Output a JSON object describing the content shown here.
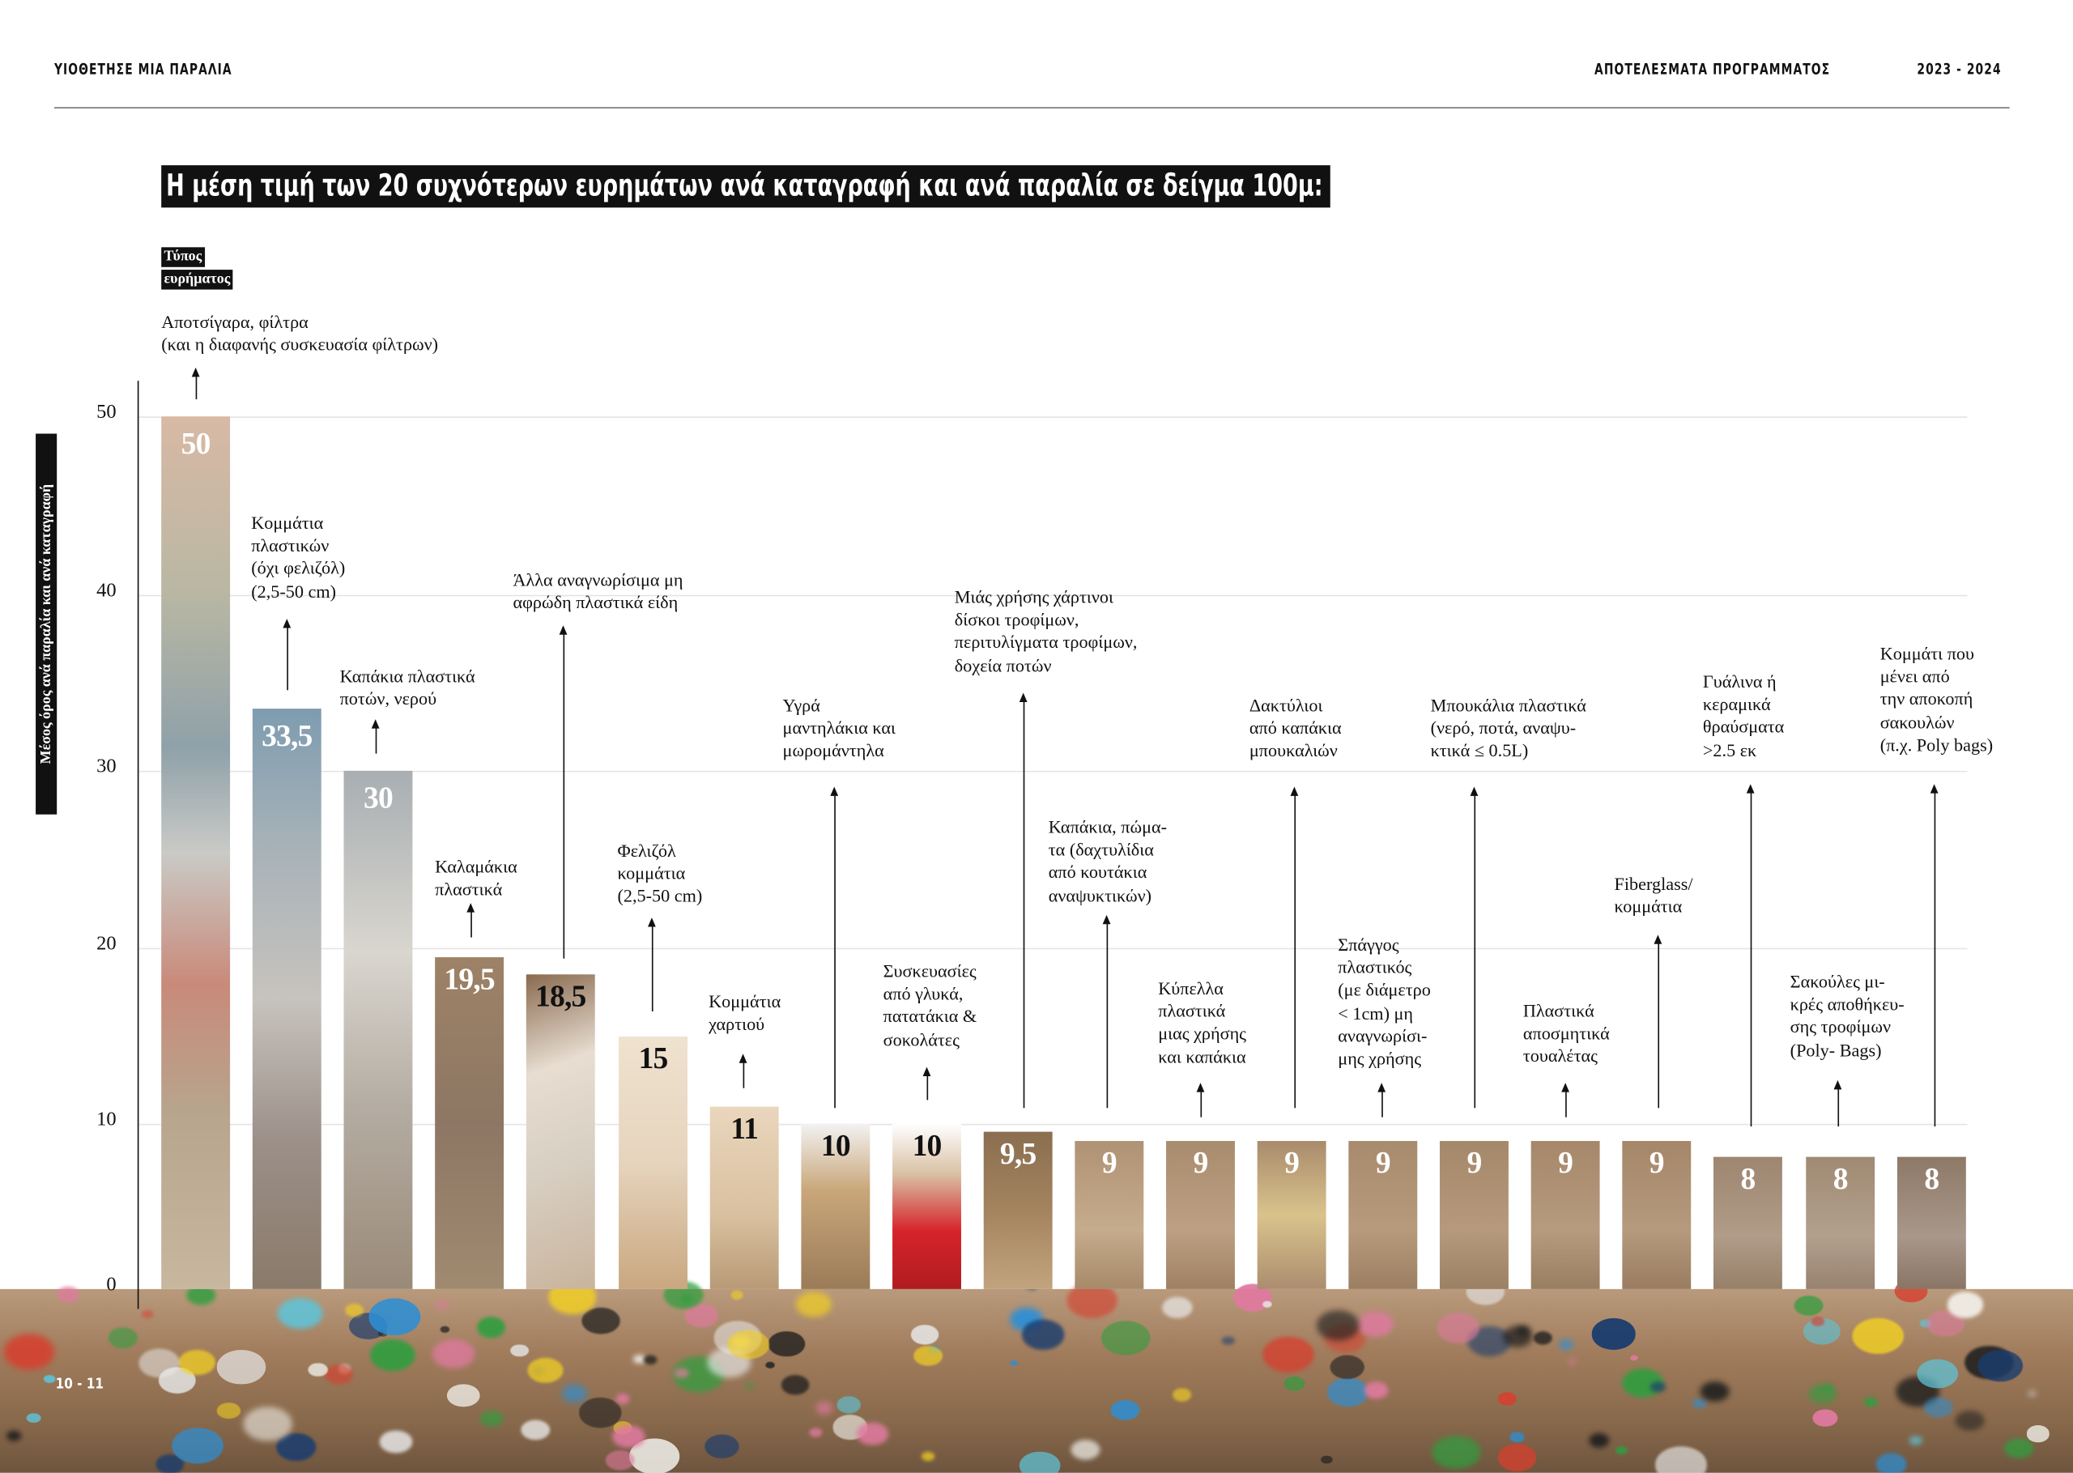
{
  "header": {
    "left": "ΥΙΟΘΕΤΗΣΕ ΜΙΑ ΠΑΡΑΛΙΑ",
    "right": "ΑΠΟΤΕΛΕΣΜΑΤΑ ΠΡΟΓΡΑΜΜΑΤΟΣ",
    "years": "2023 - 2024"
  },
  "legend": {
    "type_line1": "Τύπος",
    "type_line2": "ευρήματος"
  },
  "page_number": "10 - 11",
  "colors": {
    "accent": "#111111",
    "grid": "#e4e4e4"
  },
  "chart_data": {
    "type": "bar",
    "title": "Η μέση τιμή των 20 συχνότερων ευρημάτων ανά καταγραφή και ανά παραλία σε δείγμα 100μ:",
    "xlabel": "Τύπος ευρήματος",
    "ylabel": "Μέσος όρος ανά παραλία  και ανά καταγραφή",
    "ylim": [
      0,
      50
    ],
    "yticks": [
      "0",
      "10",
      "20",
      "30",
      "40",
      "50"
    ],
    "grid": true,
    "categories": [
      "Αποτσίγαρα, φίλτρα\n(και η διαφανής συσκευασία φίλτρων)",
      "Κομμάτια\nπλαστικών\n(όχι φελιζόλ)\n(2,5-50 cm)",
      "Καπάκια πλαστικά\nποτών, νερού",
      "Καλαμάκια\nπλαστικά",
      "Άλλα αναγνωρίσιμα μη\nαφρώδη πλαστικά είδη",
      "Φελιζόλ\nκομμάτια\n(2,5-50 cm)",
      "Κομμάτια\nχαρτιού",
      "Υγρά\nμαντηλάκια και\nμωρομάντηλα",
      "Συσκευασίες\nαπό γλυκά,\nπατατάκια &\nσοκολάτες",
      "Μιάς χρήσης χάρτινοι\nδίσκοι τροφίμων,\nπεριτυλίγματα τροφίμων,\nδοχεία ποτών",
      "Καπάκια, πώμα-\nτα (δαχτυλίδια\nαπό κουτάκια\nαναψυκτικών)",
      "Κύπελλα\nπλαστικά\nμιας χρήσης\nκαι καπάκια",
      "Δακτύλιοι\nαπό καπάκια\nμπουκαλιών",
      "Σπάγγος\nπλαστικός\n(με διάμετρο\n< 1cm) μη\nαναγνωρίσι-\nμης χρήσης",
      "Μπουκάλια πλαστικά\n(νερό, ποτά, αναψυ-\nκτικά ≤ 0.5L)",
      "Πλαστικά\nαποσμητικά\nτουαλέτας",
      "Fiberglass/\nκομμάτια",
      "Γυάλινα ή\nκεραμικά\nθραύσματα\n>2.5 εκ",
      "Σακούλες μι-\nκρές αποθήκευ-\nσης τροφίμων\n(Poly- Bags)",
      "Κομμάτι που\nμένει από\nτην αποκοπή\nσακουλών\n(π.χ. Poly bags)"
    ],
    "values": [
      50,
      33.5,
      30,
      19.5,
      18.5,
      15,
      11,
      10,
      10,
      9.5,
      9,
      9,
      9,
      9,
      9,
      9,
      9,
      8,
      8,
      8
    ],
    "value_labels": [
      "50",
      "33,5",
      "30",
      "19,5",
      "18,5",
      "15",
      "11",
      "10",
      "10",
      "9,5",
      "9",
      "9",
      "9",
      "9",
      "9",
      "9",
      "9",
      "8",
      "8",
      "8"
    ]
  }
}
